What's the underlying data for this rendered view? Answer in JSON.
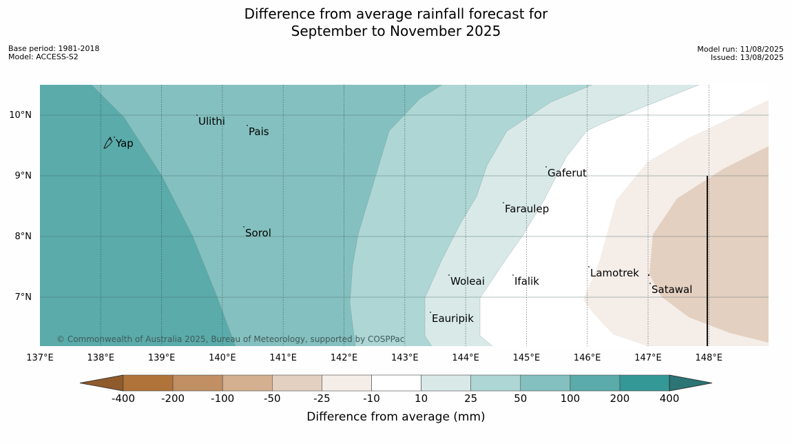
{
  "title_line1": "Difference from average rainfall forecast for",
  "title_line2": "September to November 2025",
  "meta_left": [
    "Base period: 1981-2018",
    "Model: ACCESS-S2"
  ],
  "meta_right": [
    "Model run: 11/08/2025",
    "Issued: 13/08/2025"
  ],
  "copyright": "© Commonwealth of Australia 2025, Bureau of Meteorology, supported by COSPPac",
  "map": {
    "lon_range": [
      137,
      149
    ],
    "lat_range": [
      6.3,
      10.5
    ],
    "lon_ticks": [
      "137°E",
      "138°E",
      "139°E",
      "140°E",
      "141°E",
      "142°E",
      "143°E",
      "144°E",
      "145°E",
      "146°E",
      "147°E",
      "148°E"
    ],
    "lat_ticks": [
      "10°N",
      "9°N",
      "8°N",
      "7°N"
    ],
    "places": [
      {
        "name": "Yap"
      },
      {
        "name": "Ulithi"
      },
      {
        "name": "Pais"
      },
      {
        "name": "Gaferut"
      },
      {
        "name": "Faraulep"
      },
      {
        "name": "Sorol"
      },
      {
        "name": "Woleai"
      },
      {
        "name": "Ifalik"
      },
      {
        "name": "Lamotrek"
      },
      {
        "name": "Satawal"
      },
      {
        "name": "Eauripik"
      }
    ]
  },
  "colorbar": {
    "label": "Difference from average (mm)",
    "ticks": [
      "-400",
      "-200",
      "-100",
      "-50",
      "-25",
      "-10",
      "10",
      "25",
      "50",
      "100",
      "200",
      "400"
    ],
    "colors": [
      "#b07339",
      "#c08f63",
      "#d4b090",
      "#e4d0c0",
      "#f4ede8",
      "#ffffff",
      "#d8e9e8",
      "#add6d5",
      "#84c0bf",
      "#5aabaa",
      "#349896"
    ],
    "extend_low": "#8f5b2c",
    "extend_high": "#2c7575"
  }
}
